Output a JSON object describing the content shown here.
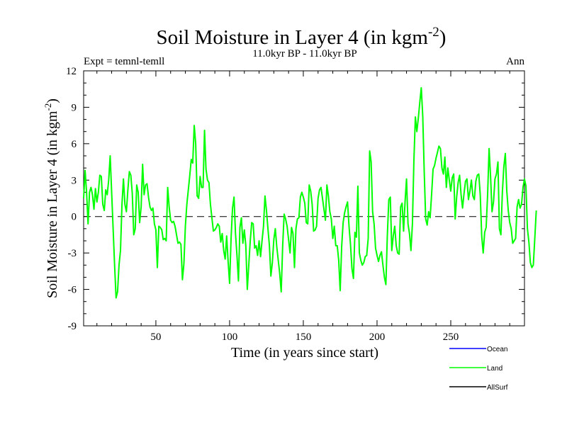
{
  "chart_data": {
    "type": "line",
    "title_main": "Soil Moisture in Layer 4 (in kgm",
    "title_sup": "-2",
    "title_close": ")",
    "subtitle": "11.0kyr BP - 11.0kyr BP",
    "expt_label": "Expt = temnl-temll",
    "season_label": "Ann",
    "xlabel": "Time (in years since start)",
    "ylabel_main": "Soil Moisture in Layer 4 (in kgm",
    "ylabel_sup": "-2",
    "ylabel_close": ")",
    "xlim": [
      1,
      300
    ],
    "ylim": [
      -9,
      12
    ],
    "xticks": [
      50,
      100,
      150,
      200,
      250
    ],
    "yticks": [
      -9,
      -6,
      -3,
      0,
      3,
      6,
      9,
      12
    ],
    "zero_line": 0,
    "legend": [
      {
        "name": "Ocean",
        "color": "#0000ff"
      },
      {
        "name": "Land",
        "color": "#00ff00"
      },
      {
        "name": "AllSurf",
        "color": "#000000"
      }
    ],
    "series": [
      {
        "name": "Land",
        "color": "#00ff00",
        "x_start": 1,
        "x_step": 1,
        "values": [
          1.5,
          3.8,
          2.0,
          -0.6,
          2.0,
          2.4,
          1.8,
          0.6,
          2.3,
          1.2,
          2.0,
          3.4,
          3.3,
          1.0,
          0.5,
          2.2,
          1.8,
          3.0,
          5.0,
          2.0,
          -1.0,
          -4.0,
          -6.7,
          -6.2,
          -4.0,
          -2.8,
          1.0,
          3.1,
          1.0,
          0.4,
          2.2,
          3.7,
          3.4,
          1.9,
          -1.5,
          -1.0,
          2.6,
          2.0,
          -0.5,
          0.8,
          4.3,
          1.8,
          2.6,
          2.7,
          1.6,
          0.8,
          0.5,
          0.7,
          -0.6,
          -1.1,
          -4.2,
          -0.8,
          -0.9,
          -1.1,
          -1.9,
          -1.8,
          -2.0,
          2.4,
          0.8,
          -0.3,
          -0.5,
          -0.4,
          -0.8,
          -1.5,
          -2.2,
          -2.1,
          -2.3,
          -5.2,
          -3.9,
          -0.8,
          1.0,
          2.2,
          3.4,
          4.7,
          4.4,
          7.5,
          6.0,
          1.7,
          1.5,
          3.3,
          2.4,
          2.4,
          7.1,
          3.9,
          3.0,
          2.8,
          1.0,
          -0.1,
          -1.2,
          -1.1,
          -0.9,
          -0.6,
          -0.8,
          -2.1,
          -1.4,
          -2.8,
          -3.5,
          -1.6,
          -3.7,
          -5.5,
          -1.8,
          0.7,
          1.6,
          -1.4,
          -3.2,
          -5.3,
          -0.9,
          -0.1,
          -2.2,
          -1.1,
          -2.4,
          -6.0,
          -4.0,
          -2.0,
          -0.5,
          -0.6,
          -2.6,
          -2.4,
          -3.2,
          -2.0,
          -3.3,
          -2.0,
          -0.8,
          1.7,
          0.5,
          -1.0,
          -2.4,
          -4.9,
          -3.8,
          -1.9,
          -1.0,
          -2.5,
          -3.6,
          -4.7,
          -6.2,
          -2.4,
          0.2,
          -0.2,
          -0.8,
          -1.9,
          -3.0,
          -0.9,
          -1.4,
          -4.2,
          -1.0,
          -0.2,
          -0.1,
          1.6,
          2.0,
          1.6,
          1.1,
          -0.5,
          -0.6,
          2.6,
          2.1,
          1.0,
          -1.2,
          -1.1,
          -0.8,
          1.5,
          2.2,
          2.4,
          1.5,
          0.6,
          -0.3,
          2.6,
          1.7,
          0.4,
          -0.2,
          -1.8,
          -0.8,
          -2.4,
          -2.4,
          -3.6,
          -6.1,
          -2.5,
          -0.5,
          0.3,
          0.8,
          1.2,
          -0.8,
          -2.3,
          -4.3,
          -5.1,
          -1.3,
          -1.7,
          2.5,
          -3.0,
          -3.6,
          -4.0,
          -3.8,
          -3.3,
          -3.2,
          -1.8,
          5.4,
          4.5,
          0.4,
          -0.6,
          -2.6,
          -3.2,
          -3.7,
          -3.2,
          -2.9,
          -4.0,
          -5.0,
          -5.6,
          -1.5,
          1.4,
          1.6,
          -2.8,
          -1.6,
          -0.8,
          -2.4,
          -3.0,
          -3.1,
          0.8,
          1.1,
          -1.2,
          1.2,
          3.1,
          -0.6,
          -1.4,
          -2.8,
          -0.6,
          4.6,
          8.2,
          7.0,
          8.1,
          9.4,
          10.6,
          8.3,
          3.7,
          -0.2,
          -0.7,
          0.4,
          -0.1,
          1.8,
          3.9,
          4.2,
          4.8,
          5.3,
          5.8,
          5.6,
          4.0,
          3.5,
          4.9,
          2.4,
          4.0,
          3.0,
          2.1,
          3.2,
          3.5,
          -0.2,
          1.6,
          2.8,
          3.4,
          1.8,
          0.7,
          1.9,
          2.9,
          3.1,
          1.4,
          2.1,
          3.0,
          1.7,
          1.4,
          2.9,
          3.4,
          3.5,
          1.8,
          -1.6,
          -3.0,
          -1.3,
          -0.9,
          1.8,
          5.6,
          3.3,
          0.4,
          1.2,
          3.1,
          3.5,
          4.5,
          -1.0,
          -1.5,
          2.0,
          4.1,
          5.2,
          2.1,
          0.5,
          -0.5,
          -1.0,
          -2.2,
          -2.0,
          -1.8,
          0.8,
          1.4,
          0.7,
          1.0,
          2.4,
          3.1,
          2.5,
          -1.0,
          -2.1,
          -3.8,
          -4.2,
          -4.0,
          -1.8,
          0.5
        ]
      }
    ]
  }
}
